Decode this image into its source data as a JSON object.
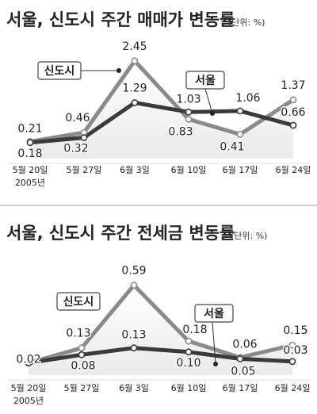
{
  "chart_data": [
    {
      "type": "line",
      "title": "서울, 신도시 주간 매매가 변동률",
      "unit_note": "(단위: %)",
      "categories": [
        "5월 20일",
        "5월 27일",
        "6월 3일",
        "6월 10일",
        "6월 17일",
        "6월 24일"
      ],
      "year_note": "2005년",
      "ylim": [
        0.0,
        2.6
      ],
      "series": [
        {
          "name": "신도시",
          "values": [
            0.21,
            0.46,
            2.45,
            0.83,
            0.41,
            1.37
          ],
          "color": "#8a8a8a"
        },
        {
          "name": "서울",
          "values": [
            0.18,
            0.32,
            1.29,
            1.03,
            1.06,
            0.66
          ],
          "color": "#3a3a3a"
        }
      ],
      "value_labels": [
        [
          "0.21",
          "0.46",
          "2.45",
          "0.83",
          "0.41",
          "1.37"
        ],
        [
          "0.18",
          "0.32",
          "1.29",
          "1.03",
          "1.06",
          "0.66"
        ]
      ]
    },
    {
      "type": "line",
      "title": "서울, 신도시 주간 전세금 변동률",
      "unit_note": "(단위: %)",
      "categories": [
        "5월 20일",
        "5월 27일",
        "6월 3일",
        "6월 10일",
        "6월 17일",
        "6월 24일"
      ],
      "year_note": "2005년",
      "ylim": [
        0.0,
        0.64
      ],
      "series": [
        {
          "name": "신도시",
          "values": [
            0.02,
            0.13,
            0.59,
            0.18,
            0.06,
            0.15
          ],
          "color": "#8a8a8a"
        },
        {
          "name": "서울",
          "values": [
            0.02,
            0.08,
            0.13,
            0.1,
            0.05,
            0.03
          ],
          "color": "#3a3a3a"
        }
      ],
      "value_labels": [
        [
          "0.02",
          "0.13",
          "0.59",
          "0.18",
          "0.06",
          "0.15"
        ],
        [
          "",
          "0.08",
          "0.13",
          "0.10",
          "0.05",
          "0.03"
        ]
      ]
    }
  ],
  "colors": {
    "accent": "#8a8a8a",
    "dark": "#3a3a3a",
    "bg_gradient": "#eaeaea"
  }
}
